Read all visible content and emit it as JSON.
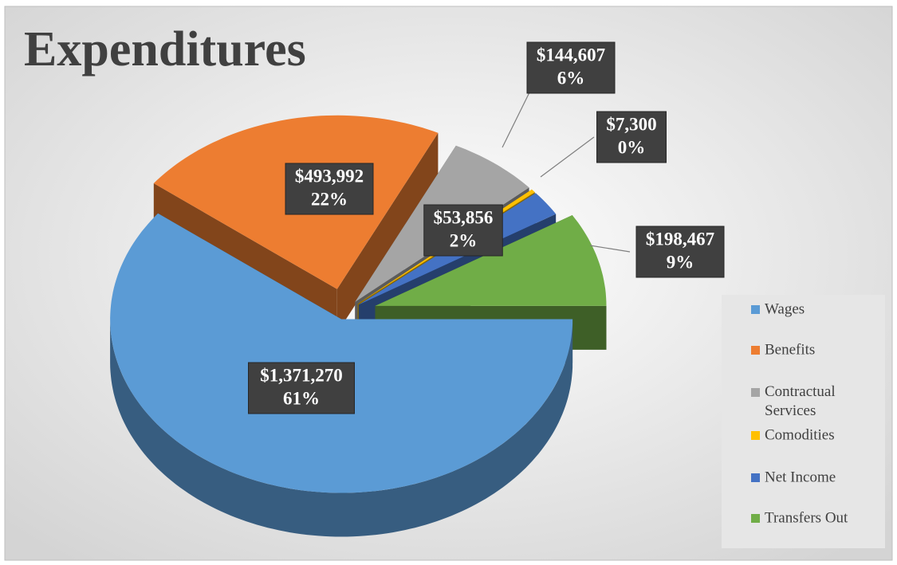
{
  "chart_data": {
    "type": "pie3d",
    "title": "Expenditures",
    "categories": [
      "Wages",
      "Benefits",
      "Contractual Services",
      "Comodities",
      "Net Income",
      "Transfers Out"
    ],
    "values": [
      1371270,
      493992,
      144607,
      7300,
      53856,
      198467
    ],
    "value_labels": [
      "$1,371,270",
      "$493,992",
      "$144,607",
      "$7,300",
      "$53,856",
      "$198,467"
    ],
    "percent_labels": [
      "61%",
      "22%",
      "6%",
      "0%",
      "2%",
      "9%"
    ],
    "colors": [
      "#5b9bd5",
      "#ed7d31",
      "#a5a5a5",
      "#ffc000",
      "#4472c4",
      "#70ad47"
    ],
    "legend": "right"
  }
}
